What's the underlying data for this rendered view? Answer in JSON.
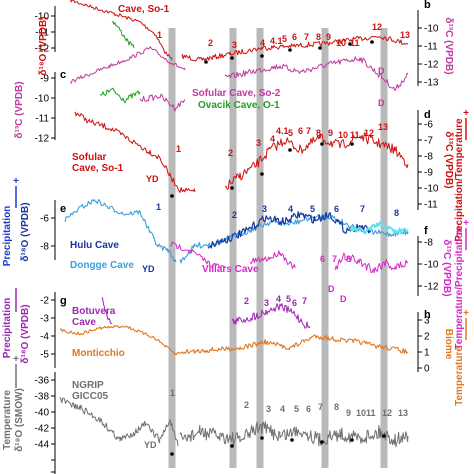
{
  "chart_data": [
    {
      "type": "line",
      "panel": "b",
      "yaxis_side": "left",
      "ylabel": "δ¹⁸O (VPDB)",
      "ylim": [
        -12.5,
        -9.5
      ],
      "ticks": [
        "-10",
        "-11",
        "-12"
      ],
      "series": [
        {
          "name": "Sofular Cave, So-1",
          "color": "#d01010"
        }
      ],
      "annotations": [
        "1",
        "2",
        "3",
        "4",
        "4.1",
        "5",
        "6",
        "7",
        "8",
        "9",
        "10",
        "11",
        "12",
        "13"
      ]
    },
    {
      "type": "line",
      "panel": "b",
      "yaxis_side": "right",
      "ylabel": "δ¹³C (VPDB)",
      "ylim": [
        -13,
        -10
      ],
      "ticks": [
        "-10",
        "-11",
        "-12",
        "-13"
      ],
      "series": [
        {
          "name": "Sofular Cave, So-2",
          "color": "#c03aa0"
        },
        {
          "name": "Ovacik Cave, O-1",
          "color": "#22a022"
        }
      ],
      "annotations": [
        "D",
        "D"
      ]
    },
    {
      "type": "line",
      "panel": "c",
      "yaxis_side": "left",
      "ylabel": "δ¹³C (VPDB)",
      "ylim": [
        -13,
        -8.5
      ],
      "ticks": [
        "-9",
        "-10",
        "-11",
        "-12"
      ],
      "series": [
        {
          "name": "Sofular Cave, So-2",
          "color": "#c03aa0"
        },
        {
          "name": "Ovacik Cave, O-1",
          "color": "#22a022"
        }
      ]
    },
    {
      "type": "line",
      "panel": "d",
      "yaxis_side": "right",
      "ylabel": "δ¹³C (VPDB)",
      "ylim": [
        -12,
        -6
      ],
      "ticks": [
        "-6",
        "-7",
        "-8",
        "-9",
        "-10",
        "-11"
      ],
      "series": [
        {
          "name": "Sofular Cave, So-1",
          "color": "#d01010"
        }
      ],
      "annotations": [
        "YD",
        "1",
        "2",
        "3",
        "4",
        "4.1",
        "5",
        "6",
        "7",
        "8",
        "9",
        "10",
        "11",
        "12",
        "13"
      ]
    },
    {
      "type": "line",
      "panel": "e",
      "yaxis_side": "left",
      "ylabel": "δ¹⁸O (VPDB)",
      "ylim": [
        -9,
        -5
      ],
      "ticks": [
        "-6",
        "-8"
      ],
      "series": [
        {
          "name": "Hulu Cave",
          "color": "#1836a0"
        },
        {
          "name": "Dongge Cave",
          "color": "#3aa0dc"
        }
      ],
      "annotations": [
        "YD",
        "1",
        "2",
        "3",
        "4",
        "5",
        "6",
        "7",
        "8",
        "13"
      ]
    },
    {
      "type": "line",
      "panel": "f",
      "yaxis_side": "right",
      "ylabel": "δ¹³C (VPDB)",
      "ylim": [
        -12.5,
        -7.5
      ],
      "ticks": [
        "-8",
        "-10",
        "-12"
      ],
      "series": [
        {
          "name": "Villars Cave",
          "color": "#d628c8"
        }
      ],
      "annotations": [
        "6",
        "7",
        "8",
        "D",
        "D"
      ]
    },
    {
      "type": "line",
      "panel": "g",
      "yaxis_side": "left",
      "ylabel": "δ¹⁸O (VPDB)",
      "ylim": [
        -5.5,
        -1.5
      ],
      "ticks": [
        "-2",
        "-3",
        "-4",
        "-5"
      ],
      "series": [
        {
          "name": "Botuvera Cave",
          "color": "#9a28b0"
        },
        {
          "name": "Monticchio",
          "color": "#e07820"
        }
      ],
      "annotations": [
        "2",
        "3",
        "4",
        "5",
        "6",
        "7"
      ]
    },
    {
      "type": "line",
      "panel": "h",
      "yaxis_side": "right",
      "ylabel": "Biome",
      "ylim": [
        -1,
        3
      ],
      "ticks": [
        "3",
        "2",
        "1",
        "0"
      ],
      "series": [
        {
          "name": "Monticchio",
          "color": "#e07820"
        }
      ]
    },
    {
      "type": "line",
      "panel": "",
      "yaxis_side": "left",
      "ylabel": "δ¹⁸O (SMOW)",
      "ylim": [
        -45,
        -35
      ],
      "ticks": [
        "-36",
        "-38",
        "-40",
        "-42",
        "-44"
      ],
      "series": [
        {
          "name": "NGRIP GICC05",
          "color": "#707070"
        }
      ],
      "annotations": [
        "YD",
        "1",
        "2",
        "3",
        "4",
        "5",
        "6",
        "7",
        "8",
        "9",
        "10",
        "11",
        "12",
        "13"
      ]
    }
  ],
  "side_labels": {
    "left_precip_1": "Precipitation",
    "left_precip_2": "Precipitation",
    "left_temp": "Temperature",
    "right_prectemp": "Precipitation/Temperature",
    "right_temp_prec": "Temperature/Precipitation",
    "right_temp": "Temperature",
    "plus": "+",
    "minus": "−"
  },
  "panel_letters": [
    "b",
    "c",
    "d",
    "e",
    "f",
    "g",
    "h"
  ],
  "legend_texts": {
    "sofular_so1_top": "Cave, So-1",
    "sofular_so2": "Sofular Cave, So-2",
    "ovacik": "Ovacik Cave, O-1",
    "sofular_so1_mid": "Sofular\nCave, So-1",
    "hulu": "Hulu Cave",
    "dongge": "Dongge Cave",
    "villars": "Villars Cave",
    "botuvera": "Botuvera\nCave",
    "monticchio": "Monticchio",
    "ngrip": "NGRIP\nGICC05"
  },
  "colors": {
    "red": "#d01010",
    "magenta": "#c03aa0",
    "green": "#22a022",
    "navy": "#1836a0",
    "lightblue": "#3aa0dc",
    "cyan": "#5ee0ee",
    "pink": "#d628c8",
    "purple": "#9a28b0",
    "orange": "#e07820",
    "gray": "#707070",
    "bar": "#b9b9b9",
    "blue_arrow": "#1a3ccc"
  }
}
